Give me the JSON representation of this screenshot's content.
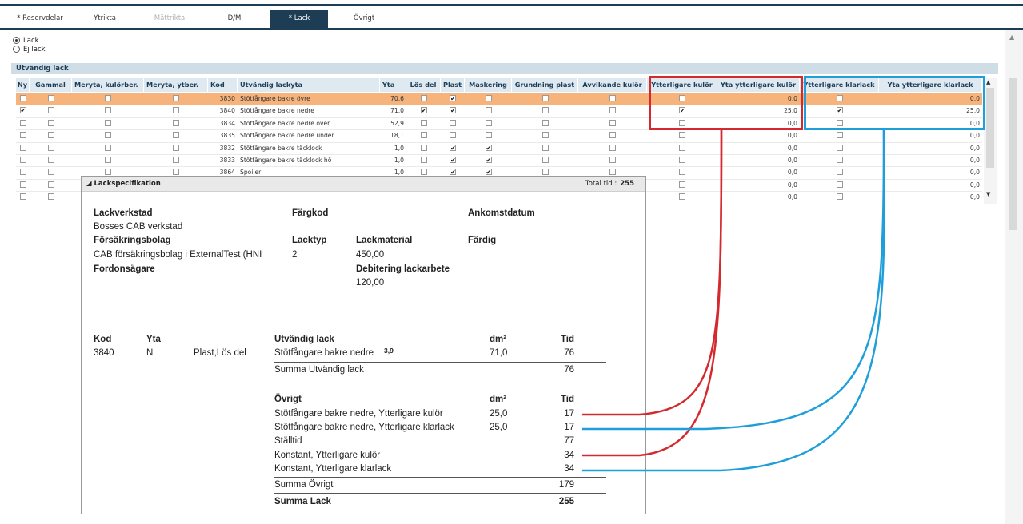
{
  "tabs": [
    {
      "label": "* Reservdelar",
      "state": "normal"
    },
    {
      "label": "Ytrikta",
      "state": "normal"
    },
    {
      "label": "Måttrikta",
      "state": "disabled"
    },
    {
      "label": "D/M",
      "state": "normal"
    },
    {
      "label": "* Lack",
      "state": "active"
    },
    {
      "label": "Övrigt",
      "state": "normal"
    }
  ],
  "radios": [
    {
      "label": "Lack",
      "checked": true
    },
    {
      "label": "Ej lack",
      "checked": false
    }
  ],
  "section": {
    "title": "Utvändig lack"
  },
  "grid": {
    "columns": [
      "Ny",
      "Gammal",
      "Meryta, kulörber.",
      "Meryta, ytber.",
      "Kod",
      "Utvändig lackyta",
      "Yta",
      "Lös del",
      "Plast",
      "Maskering",
      "Grundning plast",
      "Avvikande kulör",
      "Ytterligare kulör",
      "Yta ytterligare kulör",
      "Ytterligare klarlack",
      "Yta ytterligare klarlack"
    ],
    "rows": [
      {
        "ny": false,
        "gammal": false,
        "mk": false,
        "my": false,
        "kod": "3830",
        "namn": "Stötfångare bakre övre",
        "yta": "70,6",
        "los": false,
        "plast": true,
        "mask": false,
        "grund": false,
        "avv": false,
        "ytk": false,
        "ytak": "0,0",
        "ytkl": false,
        "ytakl": "0,0",
        "selected": true
      },
      {
        "ny": true,
        "gammal": false,
        "mk": false,
        "my": false,
        "kod": "3840",
        "namn": "Stötfångare bakre nedre",
        "yta": "71,0",
        "los": true,
        "plast": true,
        "mask": false,
        "grund": false,
        "avv": false,
        "ytk": true,
        "ytak": "25,0",
        "ytkl": true,
        "ytakl": "25,0"
      },
      {
        "ny": false,
        "gammal": false,
        "mk": false,
        "my": false,
        "kod": "3834",
        "namn": "Stötfångare bakre nedre över...",
        "yta": "52,9",
        "los": false,
        "plast": false,
        "mask": false,
        "grund": false,
        "avv": false,
        "ytk": false,
        "ytak": "0,0",
        "ytkl": false,
        "ytakl": "0,0"
      },
      {
        "ny": false,
        "gammal": false,
        "mk": false,
        "my": false,
        "kod": "3835",
        "namn": "Stötfångare bakre nedre under...",
        "yta": "18,1",
        "los": false,
        "plast": false,
        "mask": false,
        "grund": false,
        "avv": false,
        "ytk": false,
        "ytak": "0,0",
        "ytkl": false,
        "ytakl": "0,0"
      },
      {
        "ny": false,
        "gammal": false,
        "mk": false,
        "my": false,
        "kod": "3832",
        "namn": "Stötfångare bakre täcklock",
        "yta": "1,0",
        "los": false,
        "plast": true,
        "mask": true,
        "grund": false,
        "avv": false,
        "ytk": false,
        "ytak": "0,0",
        "ytkl": false,
        "ytakl": "0,0"
      },
      {
        "ny": false,
        "gammal": false,
        "mk": false,
        "my": false,
        "kod": "3833",
        "namn": "Stötfångare bakre täcklock hö",
        "yta": "1,0",
        "los": false,
        "plast": true,
        "mask": true,
        "grund": false,
        "avv": false,
        "ytk": false,
        "ytak": "0,0",
        "ytkl": false,
        "ytakl": "0,0"
      },
      {
        "ny": false,
        "gammal": false,
        "mk": false,
        "my": false,
        "kod": "3864",
        "namn": "Spoiler",
        "yta": "1,0",
        "los": false,
        "plast": true,
        "mask": true,
        "grund": false,
        "avv": false,
        "ytk": false,
        "ytak": "0,0",
        "ytkl": false,
        "ytakl": "0,0"
      },
      {
        "ny": false,
        "gammal": false,
        "mk": false,
        "my": false,
        "kod": "",
        "namn": "",
        "yta": "",
        "los": false,
        "plast": false,
        "mask": false,
        "grund": false,
        "avv": false,
        "ytk": false,
        "ytak": "0,0",
        "ytkl": false,
        "ytakl": "0,0"
      },
      {
        "ny": false,
        "gammal": false,
        "mk": false,
        "my": false,
        "kod": "",
        "namn": "",
        "yta": "",
        "los": false,
        "plast": false,
        "mask": false,
        "grund": false,
        "avv": false,
        "ytk": false,
        "ytak": "0,0",
        "ytkl": false,
        "ytakl": "0,0"
      }
    ]
  },
  "popup": {
    "title": "Lackspecifikation",
    "total_label": "Total tid :",
    "total_value": "255",
    "lackverkstad_label": "Lackverkstad",
    "lackverkstad_value": "Bosses CAB verkstad",
    "forsakringsbolag_label": "Försäkringsbolag",
    "forsakringsbolag_value": "CAB försäkringsbolag i ExternalTest (HNI",
    "fordonsagare_label": "Fordonsägare",
    "fargkod_label": "Färgkod",
    "lacktyp_label": "Lacktyp",
    "lacktyp_value": "2",
    "lackmaterial_label": "Lackmaterial",
    "lackmaterial_value": "450,00",
    "debitering_label": "Debitering lackarbete",
    "debitering_value": "120,00",
    "ankomstdatum_label": "Ankomstdatum",
    "fardig_label": "Färdig",
    "kod_label": "Kod",
    "yta_label": "Yta",
    "kod_value": "3840",
    "yta_value": "N",
    "plast_value": "Plast,Lös del",
    "utvandig_title": "Utvändig lack",
    "dm_label": "dm²",
    "tid_label": "Tid",
    "utvandig_item": "Stötfångare bakre nedre",
    "utvandig_sup": "3,9",
    "utvandig_dm": "71,0",
    "utvandig_tid": "76",
    "summa_utvandig_label": "Summa Utvändig lack",
    "summa_utvandig_value": "76",
    "ovrigt_title": "Övrigt",
    "ovrigt_items": [
      {
        "label": "Stötfångare bakre nedre, Ytterligare kulör",
        "dm": "25,0",
        "tid": "17"
      },
      {
        "label": "Stötfångare bakre nedre, Ytterligare klarlack",
        "dm": "25,0",
        "tid": "17"
      },
      {
        "label": "Ställtid",
        "dm": "",
        "tid": "77"
      },
      {
        "label": "Konstant, Ytterligare kulör",
        "dm": "",
        "tid": "34"
      },
      {
        "label": "Konstant, Ytterligare klarlack",
        "dm": "",
        "tid": "34"
      }
    ],
    "summa_ovrigt_label": "Summa Övrigt",
    "summa_ovrigt_value": "179",
    "summa_lack_label": "Summa Lack",
    "summa_lack_value": "255"
  },
  "highlight_colors": {
    "kulor": "#d42a2f",
    "klarlack": "#1e9fd9"
  }
}
